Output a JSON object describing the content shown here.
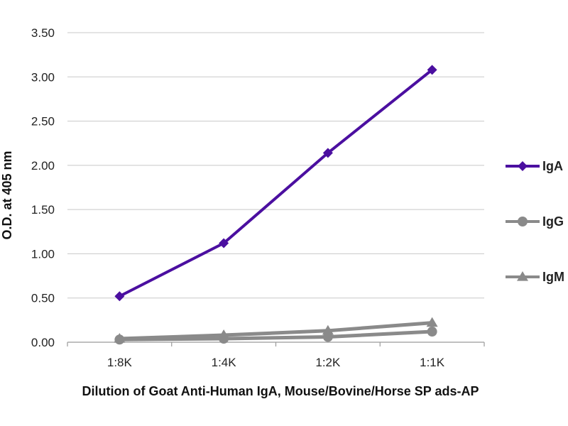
{
  "chart_data": {
    "type": "line",
    "xlabel": "Dilution of Goat Anti-Human IgA, Mouse/Bovine/Horse SP ads-AP",
    "ylabel": "O.D. at 405 nm",
    "categories": [
      "1:8K",
      "1:4K",
      "1:2K",
      "1:1K"
    ],
    "ylim": [
      0,
      3.5
    ],
    "yticks": [
      "0.00",
      "0.50",
      "1.00",
      "1.50",
      "2.00",
      "2.50",
      "3.00",
      "3.50"
    ],
    "grid": true,
    "legend_position": "right",
    "series": [
      {
        "name": "IgA",
        "values": [
          0.52,
          1.12,
          2.14,
          3.08
        ],
        "color": "#4b0fa0",
        "marker": "diamond"
      },
      {
        "name": "IgG",
        "values": [
          0.03,
          0.04,
          0.06,
          0.12
        ],
        "color": "#8a8a8a",
        "marker": "circle"
      },
      {
        "name": "IgM",
        "values": [
          0.04,
          0.08,
          0.13,
          0.22
        ],
        "color": "#8a8a8a",
        "marker": "triangle"
      }
    ]
  }
}
